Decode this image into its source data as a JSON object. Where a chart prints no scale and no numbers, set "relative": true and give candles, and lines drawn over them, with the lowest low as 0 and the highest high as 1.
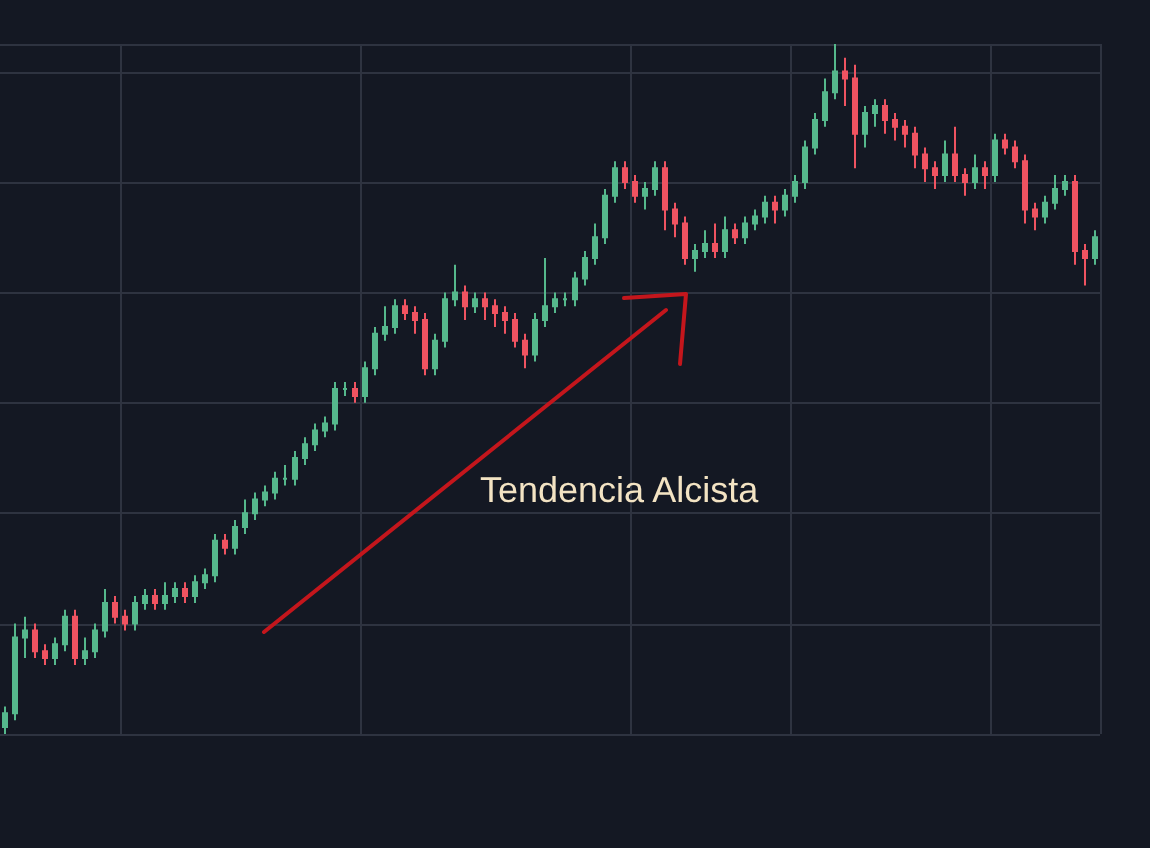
{
  "chart_data": {
    "type": "candlestick",
    "relative": true,
    "grid": true,
    "annotations": [
      "Tendencia Alcista"
    ],
    "colors": [
      "#55b88c",
      "#55b88c",
      "#55b88c",
      "#ef5361",
      "#ef5361",
      "#55b88c",
      "#55b88c",
      "#ef5361",
      "#55b88c",
      "#55b88c",
      "#55b88c",
      "#ef5361",
      "#ef5361",
      "#55b88c",
      "#55b88c",
      "#ef5361",
      "#55b88c",
      "#55b88c",
      "#ef5361",
      "#55b88c",
      "#55b88c",
      "#55b88c",
      "#ef5361",
      "#55b88c",
      "#55b88c",
      "#55b88c",
      "#55b88c",
      "#55b88c",
      "#55b88c",
      "#55b88c",
      "#55b88c",
      "#55b88c",
      "#55b88c",
      "#55b88c",
      "#55b88c",
      "#ef5361",
      "#55b88c",
      "#55b88c",
      "#55b88c",
      "#55b88c",
      "#ef5361",
      "#ef5361",
      "#ef5361",
      "#55b88c",
      "#55b88c",
      "#55b88c",
      "#ef5361",
      "#55b88c",
      "#ef5361",
      "#ef5361",
      "#ef5361",
      "#ef5361",
      "#ef5361",
      "#55b88c",
      "#55b88c",
      "#55b88c",
      "#55b88c",
      "#55b88c",
      "#55b88c",
      "#55b88c",
      "#55b88c",
      "#55b88c",
      "#ef5361",
      "#ef5361",
      "#55b88c",
      "#55b88c",
      "#ef5361",
      "#ef5361",
      "#ef5361",
      "#55b88c",
      "#55b88c",
      "#ef5361",
      "#55b88c",
      "#ef5361",
      "#55b88c",
      "#55b88c",
      "#55b88c",
      "#ef5361",
      "#55b88c",
      "#55b88c",
      "#55b88c",
      "#55b88c",
      "#55b88c",
      "#55b88c",
      "#ef5361",
      "#ef5361",
      "#55b88c",
      "#55b88c",
      "#ef5361",
      "#ef5361",
      "#ef5361",
      "#ef5361",
      "#ef5361",
      "#ef5361",
      "#55b88c",
      "#ef5361",
      "#ef5361",
      "#55b88c",
      "#ef5361",
      "#55b88c",
      "#ef5361",
      "#ef5361",
      "#ef5361",
      "#ef5361",
      "#55b88c",
      "#55b88c",
      "#55b88c",
      "#ef5361",
      "#ef5361",
      "#55b88c"
    ],
    "categories": [
      null,
      null,
      null,
      null,
      null,
      null,
      null,
      null,
      null,
      null,
      null,
      null,
      null,
      null,
      null,
      null,
      null,
      null,
      null,
      null,
      null,
      null,
      null,
      null,
      null,
      null,
      null,
      null,
      null,
      null,
      null,
      null,
      null,
      null,
      null,
      null,
      null,
      null,
      null,
      null,
      null,
      null,
      null,
      null,
      null,
      null,
      null,
      null,
      null,
      null,
      null,
      null,
      null,
      null,
      null,
      null,
      null,
      null,
      null,
      null,
      null,
      null,
      null,
      null,
      null,
      null,
      null,
      null,
      null,
      null,
      null,
      null,
      null,
      null,
      null,
      null,
      null,
      null,
      null,
      null,
      null,
      null,
      null,
      null,
      null,
      null,
      null,
      null,
      null,
      null,
      null,
      null,
      null,
      null,
      null,
      null,
      null,
      null,
      null,
      null,
      null,
      null,
      null,
      null,
      null,
      null,
      null,
      null,
      null,
      null
    ],
    "ohlc": [
      [
        0.01,
        0.04,
        0.0,
        0.03
      ],
      [
        0.03,
        0.16,
        0.02,
        0.14
      ],
      [
        0.14,
        0.17,
        0.11,
        0.15
      ],
      [
        0.15,
        0.16,
        0.11,
        0.12
      ],
      [
        0.12,
        0.13,
        0.1,
        0.11
      ],
      [
        0.11,
        0.14,
        0.1,
        0.13
      ],
      [
        0.13,
        0.18,
        0.12,
        0.17
      ],
      [
        0.17,
        0.18,
        0.1,
        0.11
      ],
      [
        0.11,
        0.14,
        0.1,
        0.12
      ],
      [
        0.12,
        0.16,
        0.11,
        0.15
      ],
      [
        0.15,
        0.21,
        0.14,
        0.19
      ],
      [
        0.19,
        0.2,
        0.16,
        0.17
      ],
      [
        0.17,
        0.18,
        0.15,
        0.16
      ],
      [
        0.16,
        0.2,
        0.15,
        0.19
      ],
      [
        0.19,
        0.21,
        0.18,
        0.2
      ],
      [
        0.2,
        0.21,
        0.18,
        0.19
      ],
      [
        0.19,
        0.22,
        0.18,
        0.2
      ],
      [
        0.2,
        0.22,
        0.19,
        0.21
      ],
      [
        0.21,
        0.22,
        0.19,
        0.2
      ],
      [
        0.2,
        0.23,
        0.19,
        0.22
      ],
      [
        0.22,
        0.24,
        0.21,
        0.23
      ],
      [
        0.23,
        0.29,
        0.22,
        0.28
      ],
      [
        0.28,
        0.29,
        0.26,
        0.27
      ],
      [
        0.27,
        0.31,
        0.26,
        0.3
      ],
      [
        0.3,
        0.34,
        0.29,
        0.32
      ],
      [
        0.32,
        0.35,
        0.31,
        0.34
      ],
      [
        0.34,
        0.36,
        0.33,
        0.35
      ],
      [
        0.35,
        0.38,
        0.34,
        0.37
      ],
      [
        0.37,
        0.39,
        0.36,
        0.37
      ],
      [
        0.37,
        0.41,
        0.36,
        0.4
      ],
      [
        0.4,
        0.43,
        0.39,
        0.42
      ],
      [
        0.42,
        0.45,
        0.41,
        0.44
      ],
      [
        0.44,
        0.46,
        0.43,
        0.45
      ],
      [
        0.45,
        0.51,
        0.44,
        0.5
      ],
      [
        0.5,
        0.51,
        0.49,
        0.5
      ],
      [
        0.5,
        0.51,
        0.48,
        0.49
      ],
      [
        0.49,
        0.54,
        0.48,
        0.53
      ],
      [
        0.53,
        0.59,
        0.52,
        0.58
      ],
      [
        0.58,
        0.62,
        0.57,
        0.59
      ],
      [
        0.59,
        0.63,
        0.58,
        0.62
      ],
      [
        0.62,
        0.63,
        0.6,
        0.61
      ],
      [
        0.61,
        0.62,
        0.58,
        0.6
      ],
      [
        0.6,
        0.61,
        0.52,
        0.53
      ],
      [
        0.53,
        0.58,
        0.52,
        0.57
      ],
      [
        0.57,
        0.64,
        0.56,
        0.63
      ],
      [
        0.63,
        0.68,
        0.62,
        0.64
      ],
      [
        0.64,
        0.65,
        0.6,
        0.62
      ],
      [
        0.62,
        0.64,
        0.61,
        0.63
      ],
      [
        0.63,
        0.64,
        0.6,
        0.62
      ],
      [
        0.62,
        0.63,
        0.59,
        0.61
      ],
      [
        0.61,
        0.62,
        0.58,
        0.6
      ],
      [
        0.6,
        0.61,
        0.56,
        0.57
      ],
      [
        0.57,
        0.58,
        0.53,
        0.55
      ],
      [
        0.55,
        0.61,
        0.54,
        0.6
      ],
      [
        0.6,
        0.69,
        0.59,
        0.62
      ],
      [
        0.62,
        0.64,
        0.61,
        0.63
      ],
      [
        0.63,
        0.64,
        0.62,
        0.63
      ],
      [
        0.63,
        0.67,
        0.62,
        0.66
      ],
      [
        0.66,
        0.7,
        0.65,
        0.69
      ],
      [
        0.69,
        0.74,
        0.68,
        0.72
      ],
      [
        0.72,
        0.79,
        0.71,
        0.78
      ],
      [
        0.78,
        0.83,
        0.77,
        0.82
      ],
      [
        0.82,
        0.83,
        0.79,
        0.8
      ],
      [
        0.8,
        0.81,
        0.77,
        0.78
      ],
      [
        0.78,
        0.8,
        0.76,
        0.79
      ],
      [
        0.79,
        0.83,
        0.78,
        0.82
      ],
      [
        0.82,
        0.83,
        0.73,
        0.76
      ],
      [
        0.76,
        0.77,
        0.72,
        0.74
      ],
      [
        0.74,
        0.75,
        0.68,
        0.69
      ],
      [
        0.69,
        0.71,
        0.67,
        0.7
      ],
      [
        0.7,
        0.73,
        0.69,
        0.71
      ],
      [
        0.71,
        0.74,
        0.69,
        0.7
      ],
      [
        0.7,
        0.75,
        0.69,
        0.73
      ],
      [
        0.73,
        0.74,
        0.71,
        0.72
      ],
      [
        0.72,
        0.75,
        0.71,
        0.74
      ],
      [
        0.74,
        0.76,
        0.73,
        0.75
      ],
      [
        0.75,
        0.78,
        0.74,
        0.77
      ],
      [
        0.77,
        0.78,
        0.74,
        0.76
      ],
      [
        0.76,
        0.79,
        0.75,
        0.78
      ],
      [
        0.78,
        0.81,
        0.77,
        0.8
      ],
      [
        0.8,
        0.86,
        0.79,
        0.85
      ],
      [
        0.85,
        0.9,
        0.84,
        0.89
      ],
      [
        0.89,
        0.95,
        0.88,
        0.93
      ],
      [
        0.93,
        1.0,
        0.92,
        0.96
      ],
      [
        0.96,
        0.98,
        0.91,
        0.95
      ],
      [
        0.95,
        0.97,
        0.82,
        0.87
      ],
      [
        0.87,
        0.91,
        0.85,
        0.9
      ],
      [
        0.9,
        0.92,
        0.88,
        0.91
      ],
      [
        0.91,
        0.92,
        0.87,
        0.89
      ],
      [
        0.89,
        0.9,
        0.86,
        0.88
      ],
      [
        0.88,
        0.89,
        0.85,
        0.87
      ],
      [
        0.87,
        0.88,
        0.82,
        0.84
      ],
      [
        0.84,
        0.85,
        0.8,
        0.82
      ],
      [
        0.82,
        0.83,
        0.79,
        0.81
      ],
      [
        0.81,
        0.86,
        0.8,
        0.84
      ],
      [
        0.84,
        0.88,
        0.8,
        0.81
      ],
      [
        0.81,
        0.82,
        0.78,
        0.8
      ],
      [
        0.8,
        0.84,
        0.79,
        0.82
      ],
      [
        0.82,
        0.83,
        0.79,
        0.81
      ],
      [
        0.81,
        0.87,
        0.8,
        0.86
      ],
      [
        0.86,
        0.87,
        0.84,
        0.85
      ],
      [
        0.85,
        0.86,
        0.82,
        0.83
      ],
      [
        0.83,
        0.84,
        0.74,
        0.76
      ],
      [
        0.76,
        0.77,
        0.73,
        0.75
      ],
      [
        0.75,
        0.78,
        0.74,
        0.77
      ],
      [
        0.77,
        0.81,
        0.76,
        0.79
      ],
      [
        0.79,
        0.81,
        0.78,
        0.8
      ],
      [
        0.8,
        0.81,
        0.68,
        0.7
      ],
      [
        0.7,
        0.71,
        0.65,
        0.69
      ],
      [
        0.69,
        0.73,
        0.68,
        0.72
      ]
    ]
  }
}
